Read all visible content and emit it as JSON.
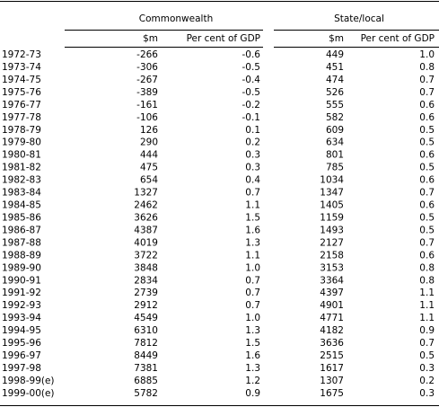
{
  "table": {
    "groups": [
      "Commonwealth",
      "State/local"
    ],
    "columns": [
      "$m",
      "Per cent of GDP",
      "$m",
      "Per cent of GDP"
    ],
    "rows": [
      [
        "1972-73",
        "-266",
        "-0.6",
        "449",
        "1.0"
      ],
      [
        "1973-74",
        "-306",
        "-0.5",
        "451",
        "0.8"
      ],
      [
        "1974-75",
        "-267",
        "-0.4",
        "474",
        "0.7"
      ],
      [
        "1975-76",
        "-389",
        "-0.5",
        "526",
        "0.7"
      ],
      [
        "1976-77",
        "-161",
        "-0.2",
        "555",
        "0.6"
      ],
      [
        "1977-78",
        "-106",
        "-0.1",
        "582",
        "0.6"
      ],
      [
        "1978-79",
        "126",
        "0.1",
        "609",
        "0.5"
      ],
      [
        "1979-80",
        "290",
        "0.2",
        "634",
        "0.5"
      ],
      [
        "1980-81",
        "444",
        "0.3",
        "801",
        "0.6"
      ],
      [
        "1981-82",
        "475",
        "0.3",
        "785",
        "0.5"
      ],
      [
        "1982-83",
        "654",
        "0.4",
        "1034",
        "0.6"
      ],
      [
        "1983-84",
        "1327",
        "0.7",
        "1347",
        "0.7"
      ],
      [
        "1984-85",
        "2462",
        "1.1",
        "1405",
        "0.6"
      ],
      [
        "1985-86",
        "3626",
        "1.5",
        "1159",
        "0.5"
      ],
      [
        "1986-87",
        "4387",
        "1.6",
        "1493",
        "0.5"
      ],
      [
        "1987-88",
        "4019",
        "1.3",
        "2127",
        "0.7"
      ],
      [
        "1988-89",
        "3722",
        "1.1",
        "2158",
        "0.6"
      ],
      [
        "1989-90",
        "3848",
        "1.0",
        "3153",
        "0.8"
      ],
      [
        "1990-91",
        "2834",
        "0.7",
        "3364",
        "0.8"
      ],
      [
        "1991-92",
        "2739",
        "0.7",
        "4397",
        "1.1"
      ],
      [
        "1992-93",
        "2912",
        "0.7",
        "4901",
        "1.1"
      ],
      [
        "1993-94",
        "4549",
        "1.0",
        "4771",
        "1.1"
      ],
      [
        "1994-95",
        "6310",
        "1.3",
        "4182",
        "0.9"
      ],
      [
        "1995-96",
        "7812",
        "1.5",
        "3636",
        "0.7"
      ],
      [
        "1996-97",
        "8449",
        "1.6",
        "2515",
        "0.5"
      ],
      [
        "1997-98",
        "7381",
        "1.3",
        "1617",
        "0.3"
      ],
      [
        "1998-99(e)",
        "6885",
        "1.2",
        "1307",
        "0.2"
      ],
      [
        "1999-00(e)",
        "5782",
        "0.9",
        "1675",
        "0.3"
      ]
    ]
  }
}
